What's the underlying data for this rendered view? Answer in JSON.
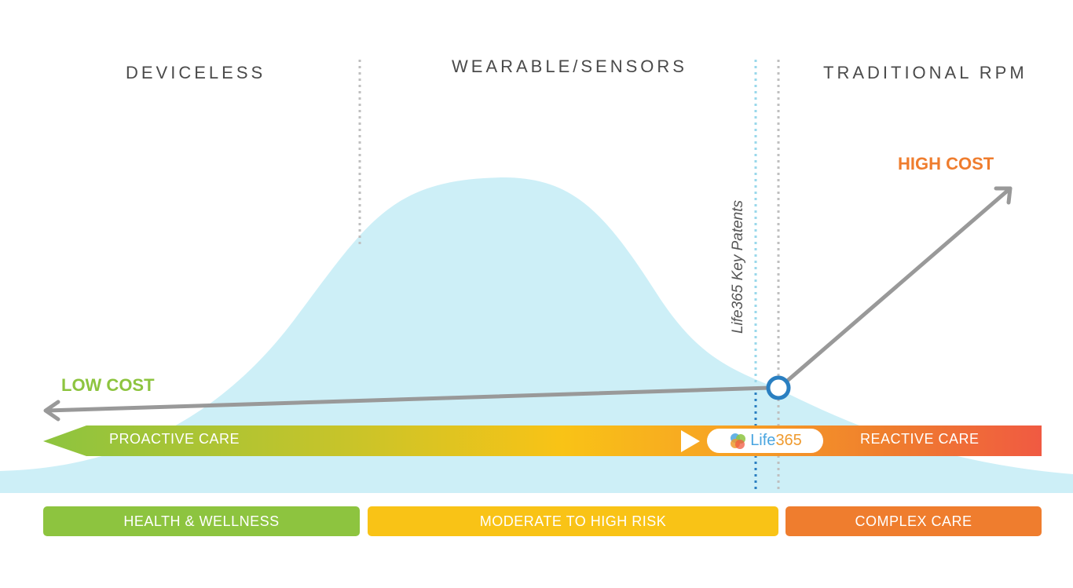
{
  "headers": {
    "deviceless": "DEVICELESS",
    "wearable": "WEARABLE/SENSORS",
    "traditional": "TRADITIONAL RPM"
  },
  "cost": {
    "high": "HIGH COST",
    "low": "LOW COST"
  },
  "patents_label": "Life365 Key Patents",
  "care_bar": {
    "proactive": "PROACTIVE CARE",
    "reactive": "REACTIVE CARE",
    "logo_text_main": "Life",
    "logo_text_num": "365"
  },
  "segments": {
    "health": "HEALTH & WELLNESS",
    "moderate": "MODERATE  TO HIGH RISK",
    "complex": "COMPLEX CARE"
  },
  "colors": {
    "green": "#8dc43f",
    "yellow": "#f9c316",
    "orange": "#ef7d2e",
    "red": "#f05a42",
    "curve": "#cdeff7",
    "arrow": "#999999",
    "node": "#2a7fc1"
  }
}
